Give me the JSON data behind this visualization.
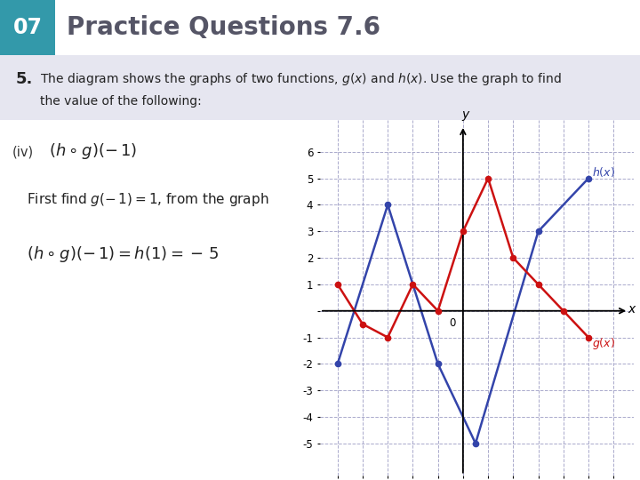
{
  "title": "Practice Questions 7.6",
  "chapter": "07",
  "h_x": [
    -5,
    -3,
    -1,
    0.5,
    3,
    5
  ],
  "h_y": [
    -2,
    4,
    -2,
    -5,
    3,
    5
  ],
  "g_x": [
    -5,
    -4,
    -3,
    -2,
    -1,
    0,
    1,
    2,
    3,
    4,
    5
  ],
  "g_y": [
    1,
    -0.5,
    -1,
    1,
    0,
    3,
    5,
    2,
    1,
    0,
    -1
  ],
  "h_color": "#3344aa",
  "g_color": "#cc1111",
  "header_bg": "#3399aa",
  "question_bg": "#e6e6f0",
  "xlim": [
    -5.7,
    6.8
  ],
  "ylim": [
    -6.2,
    7.2
  ],
  "xticks": [
    -5,
    -4,
    -3,
    -2,
    -1,
    0,
    1,
    2,
    3,
    4,
    5,
    6
  ],
  "yticks": [
    -5,
    -4,
    -3,
    -2,
    -1,
    0,
    1,
    2,
    3,
    4,
    5,
    6
  ]
}
